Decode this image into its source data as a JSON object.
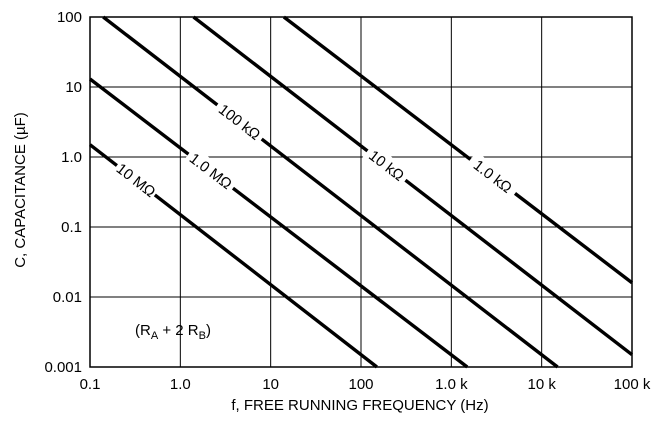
{
  "chart_data": {
    "type": "line",
    "title": "",
    "xlabel": "f, FREE RUNNING FREQUENCY (Hz)",
    "ylabel": "C, CAPACITANCE (µF)",
    "xscale": "log",
    "yscale": "log",
    "xlim": [
      0.1,
      100000
    ],
    "ylim": [
      0.001,
      100
    ],
    "grid": true,
    "xticks": [
      {
        "value": 0.1,
        "label": "0.1"
      },
      {
        "value": 1,
        "label": "1.0"
      },
      {
        "value": 10,
        "label": "10"
      },
      {
        "value": 100,
        "label": "100"
      },
      {
        "value": 1000,
        "label": "1.0 k"
      },
      {
        "value": 10000,
        "label": "10 k"
      },
      {
        "value": 100000,
        "label": "100 k"
      }
    ],
    "yticks": [
      {
        "value": 100,
        "label": "100"
      },
      {
        "value": 10,
        "label": "10"
      },
      {
        "value": 1,
        "label": "1.0"
      },
      {
        "value": 0.1,
        "label": "0.1"
      },
      {
        "value": 0.01,
        "label": "0.01"
      },
      {
        "value": 0.001,
        "label": "0.001"
      }
    ],
    "series": [
      {
        "name": "10 MΩ",
        "points": [
          [
            0.1,
            1.5
          ],
          [
            150,
            0.001
          ]
        ]
      },
      {
        "name": "1.0 MΩ",
        "points": [
          [
            0.1,
            13
          ],
          [
            1500,
            0.001
          ]
        ]
      },
      {
        "name": "100 kΩ",
        "points": [
          [
            0.14,
            100
          ],
          [
            15000,
            0.001
          ]
        ]
      },
      {
        "name": "10 kΩ",
        "points": [
          [
            1.4,
            100
          ],
          [
            100000,
            0.0015
          ]
        ]
      },
      {
        "name": "1.0 kΩ",
        "points": [
          [
            14,
            100
          ],
          [
            100000,
            0.016
          ]
        ]
      }
    ],
    "annotation": "(Rₐ + 2 Rᵦ)",
    "annotation_parts": {
      "open": "(R",
      "sub1": "A",
      "mid": " + 2 R",
      "sub2": "B",
      "close": ")"
    }
  }
}
